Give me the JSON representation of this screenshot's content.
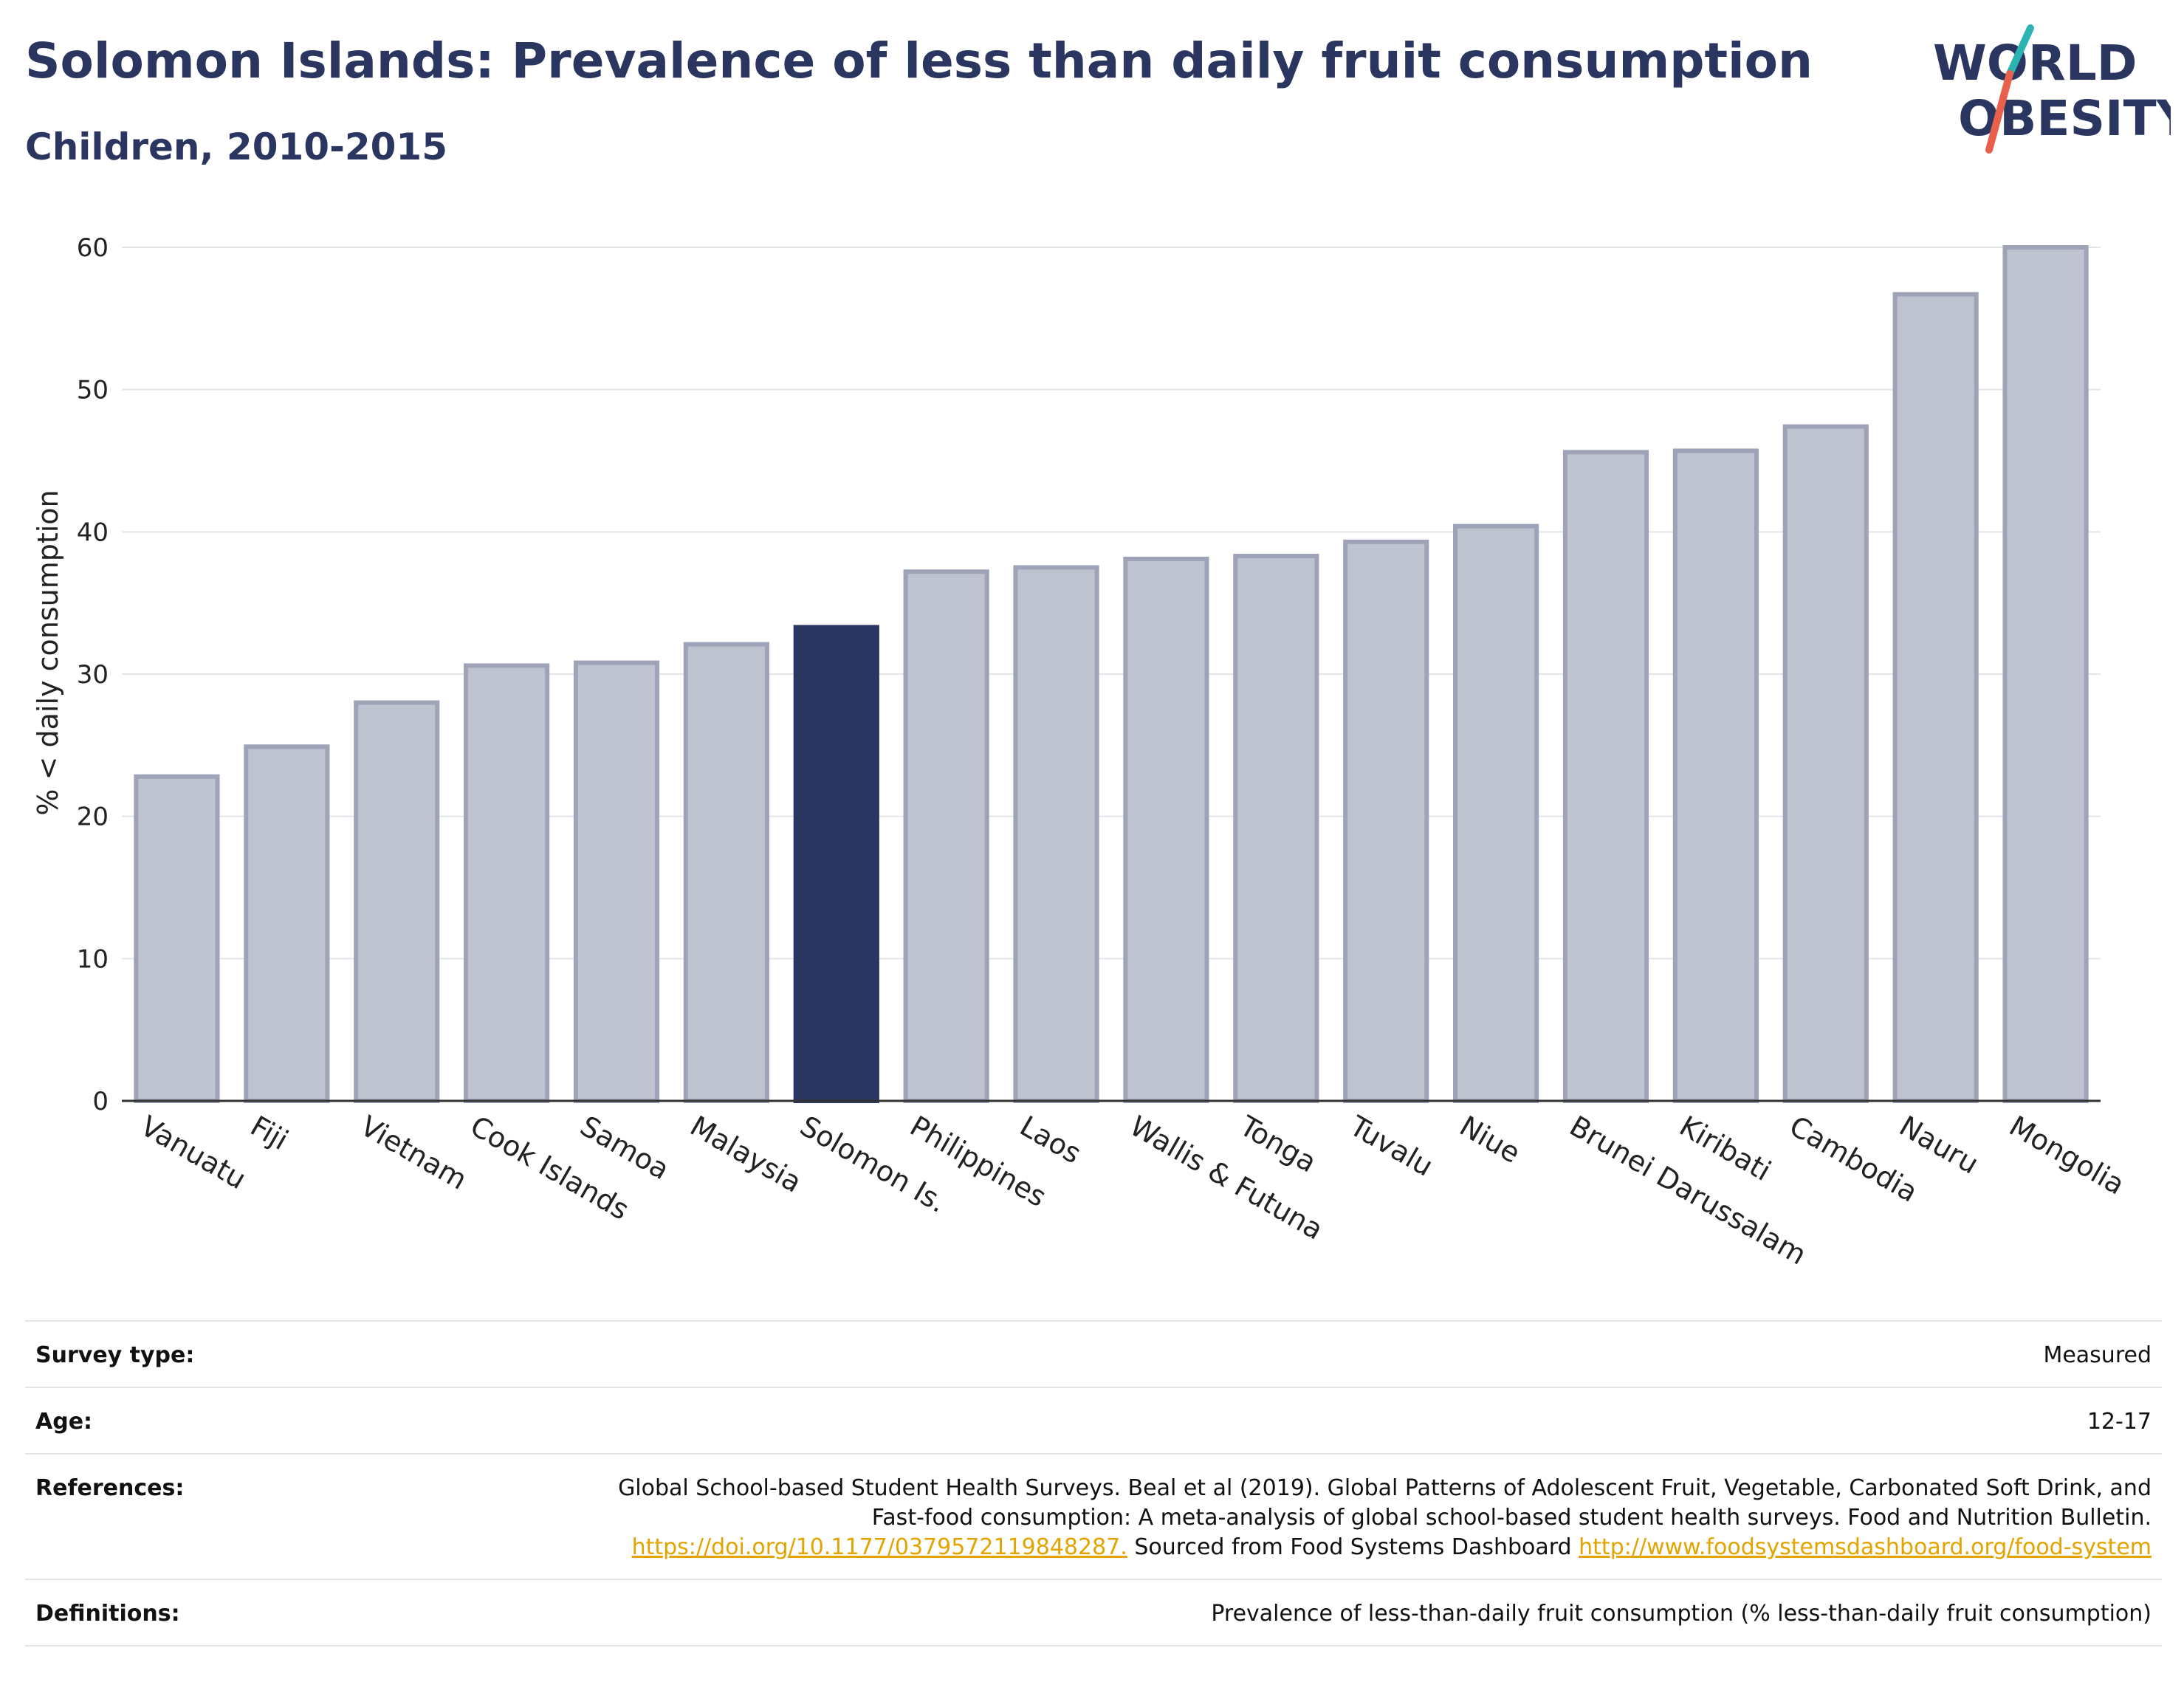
{
  "header": {
    "title": "Solomon Islands: Prevalence of less than daily fruit consumption",
    "subtitle": "Children, 2010-2015"
  },
  "logo": {
    "line1": "WORLD",
    "line2": "OBESITY",
    "accent_teal": "#2bb3b1",
    "accent_red": "#e8604c"
  },
  "chart_data": {
    "type": "bar",
    "ylabel": "% < daily consumption",
    "ylim": [
      0,
      60
    ],
    "yticks": [
      0,
      10,
      20,
      30,
      40,
      50,
      60
    ],
    "grid": true,
    "categories": [
      "Vanuatu",
      "Fiji",
      "Vietnam",
      "Cook Islands",
      "Samoa",
      "Malaysia",
      "Solomon Is.",
      "Philippines",
      "Laos",
      "Wallis & Futuna",
      "Tonga",
      "Tuvalu",
      "Niue",
      "Brunei Darussalam",
      "Kiribati",
      "Cambodia",
      "Nauru",
      "Mongolia"
    ],
    "values": [
      22.8,
      24.9,
      28.0,
      30.6,
      30.8,
      32.1,
      33.3,
      37.2,
      37.5,
      38.1,
      38.3,
      39.3,
      40.4,
      45.6,
      45.7,
      47.4,
      56.7,
      60.0
    ],
    "highlight": "Solomon Is.",
    "colors": {
      "bar": "#bfc2cf",
      "bar_edge": "#9ea3b8",
      "highlight": "#2b3660"
    }
  },
  "info": {
    "survey_type": {
      "label": "Survey type:",
      "value": "Measured"
    },
    "age": {
      "label": "Age:",
      "value": "12-17"
    },
    "references": {
      "label": "References:",
      "text1": "Global School-based Student Health Surveys. Beal et al (2019). Global Patterns of Adolescent Fruit, Vegetable, Carbonated Soft Drink, and Fast-food consumption: A meta-analysis of global school-based student health surveys. Food and Nutrition Bulletin.",
      "link1": "https://doi.org/10.1177/0379572119848287.",
      "text2": "Sourced from Food Systems Dashboard",
      "link2": "http://www.foodsystemsdashboard.org/food-system"
    },
    "definitions": {
      "label": "Definitions:",
      "value": "Prevalence of less-than-daily fruit consumption (% less-than-daily fruit consumption)"
    }
  }
}
